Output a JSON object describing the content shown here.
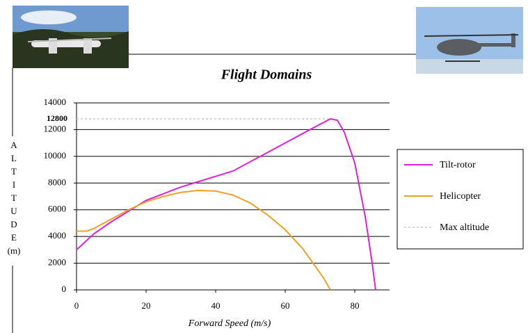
{
  "chart_data": {
    "type": "line",
    "title": "Flight Domains",
    "x_label": "Forward Speed (m/s)",
    "y_label": "ALTITUDE (m)",
    "xlim": [
      0,
      90
    ],
    "xticks": [
      0,
      20,
      40,
      60,
      80
    ],
    "ylim": [
      0,
      14000
    ],
    "yticks": [
      0,
      2000,
      4000,
      6000,
      8000,
      10000,
      12000,
      14000
    ],
    "grid": true,
    "legend": "right",
    "series": [
      {
        "name": "Tilt-rotor",
        "color": "#e020d8",
        "style": "solid",
        "x": [
          0,
          5,
          10,
          15,
          20,
          25,
          30,
          35,
          40,
          45,
          50,
          55,
          60,
          65,
          70,
          73,
          75,
          77,
          80,
          83,
          85,
          86
        ],
        "values": [
          3000,
          4200,
          5100,
          5900,
          6700,
          7200,
          7700,
          8100,
          8500,
          8900,
          9600,
          10300,
          11000,
          11700,
          12400,
          12800,
          12700,
          11800,
          9500,
          5500,
          2000,
          0
        ]
      },
      {
        "name": "Helicopter",
        "color": "#f0a020",
        "style": "solid",
        "x": [
          0,
          3,
          5,
          10,
          15,
          20,
          25,
          30,
          35,
          40,
          45,
          50,
          55,
          60,
          65,
          68,
          71,
          73
        ],
        "values": [
          4400,
          4400,
          4600,
          5300,
          6000,
          6600,
          7000,
          7300,
          7450,
          7400,
          7100,
          6500,
          5600,
          4500,
          3100,
          2000,
          900,
          0
        ]
      },
      {
        "name": "Max altitude",
        "color": "#c8c8c8",
        "style": "dashed",
        "x": [
          0,
          74
        ],
        "values": [
          12800,
          12800
        ]
      }
    ]
  }
}
